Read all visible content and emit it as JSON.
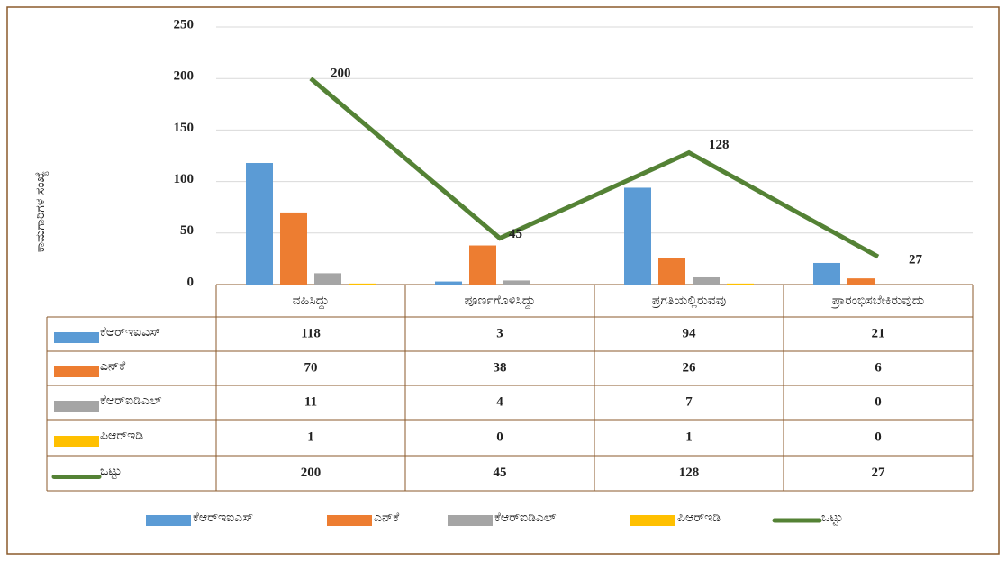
{
  "chart_data": {
    "type": "bar",
    "y_label": "ಕಾಮಗಾರಿಗಳ ಸಂಖ್ಯೆ",
    "categories": [
      "ವಹಿಸಿದ್ದು",
      "ಪೂರ್ಣಗೊಳಿಸಿದ್ದು",
      "ಪ್ರಗತಿಯಲ್ಲಿರುವವು",
      "ಪ್ರಾರಂಭಿಸಬೇಕಿರುವುದು"
    ],
    "series": [
      {
        "name": "ಕೆಆರ್‌ಇಐಎಸ್",
        "color": "#5b9bd5",
        "values": [
          118,
          3,
          94,
          21
        ]
      },
      {
        "name": "ಎನ್‌ಕೆ",
        "color": "#ed7d31",
        "values": [
          70,
          38,
          26,
          6
        ]
      },
      {
        "name": "ಕೆಆರ್‌ಐಡಿಎಲ್",
        "color": "#a5a5a5",
        "values": [
          11,
          4,
          7,
          0
        ]
      },
      {
        "name": "ಪಿಆರ್‌ಇಡಿ",
        "color": "#ffc000",
        "values": [
          1,
          0,
          1,
          0
        ]
      },
      {
        "name": "ಒಟ್ಟು",
        "color": "#548235",
        "type": "line",
        "values": [
          200,
          45,
          128,
          27
        ]
      }
    ],
    "ylim": [
      0,
      250
    ],
    "yticks": [
      0,
      50,
      100,
      150,
      200,
      250
    ],
    "grid": true,
    "legend": "bottom"
  }
}
